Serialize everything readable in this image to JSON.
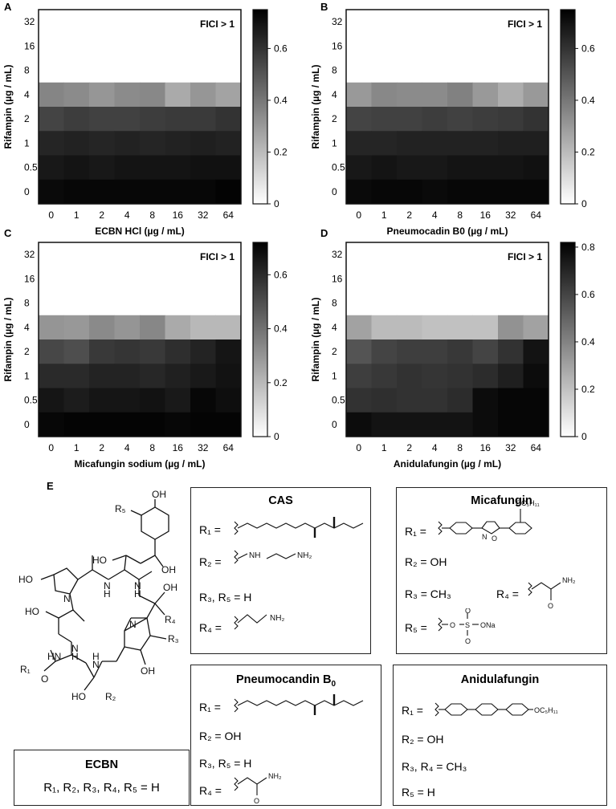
{
  "chart_data": [
    {
      "type": "heatmap",
      "panel": "A",
      "annotation": "FICI > 1",
      "xlabel": "ECBN HCl (µg / mL)",
      "ylabel": "Rifampin (µg / mL)",
      "x_categories": [
        "0",
        "1",
        "2",
        "4",
        "8",
        "16",
        "32",
        "64"
      ],
      "y_categories": [
        "32",
        "16",
        "8",
        "4",
        "2",
        "1",
        "0.5",
        "0"
      ],
      "colorbar": {
        "min": 0,
        "max": 0.75,
        "ticks": [
          0,
          0.2,
          0.4,
          0.6
        ]
      },
      "values": [
        [
          0,
          0,
          0,
          0,
          0,
          0,
          0,
          0
        ],
        [
          0,
          0,
          0,
          0,
          0,
          0,
          0,
          0
        ],
        [
          0,
          0,
          0,
          0,
          0,
          0,
          0,
          0
        ],
        [
          0.36,
          0.34,
          0.31,
          0.34,
          0.35,
          0.25,
          0.31,
          0.27
        ],
        [
          0.55,
          0.57,
          0.56,
          0.56,
          0.57,
          0.58,
          0.58,
          0.6
        ],
        [
          0.64,
          0.65,
          0.64,
          0.65,
          0.64,
          0.65,
          0.66,
          0.65
        ],
        [
          0.68,
          0.69,
          0.68,
          0.69,
          0.69,
          0.69,
          0.7,
          0.7
        ],
        [
          0.72,
          0.73,
          0.73,
          0.73,
          0.73,
          0.73,
          0.73,
          0.74
        ]
      ]
    },
    {
      "type": "heatmap",
      "panel": "B",
      "annotation": "FICI > 1",
      "xlabel": "Pneumocadin B0 (µg / mL)",
      "ylabel": "Rifampin (µg / mL)",
      "x_categories": [
        "0",
        "1",
        "2",
        "4",
        "8",
        "16",
        "32",
        "64"
      ],
      "y_categories": [
        "32",
        "16",
        "8",
        "4",
        "2",
        "1",
        "0.5",
        "0"
      ],
      "colorbar": {
        "min": 0,
        "max": 0.75,
        "ticks": [
          0,
          0.2,
          0.4,
          0.6
        ]
      },
      "values": [
        [
          0,
          0,
          0,
          0,
          0,
          0,
          0,
          0
        ],
        [
          0,
          0,
          0,
          0,
          0,
          0,
          0,
          0
        ],
        [
          0,
          0,
          0,
          0,
          0,
          0,
          0,
          0
        ],
        [
          0.3,
          0.35,
          0.34,
          0.34,
          0.37,
          0.3,
          0.24,
          0.3
        ],
        [
          0.55,
          0.56,
          0.56,
          0.57,
          0.56,
          0.57,
          0.58,
          0.6
        ],
        [
          0.64,
          0.64,
          0.65,
          0.65,
          0.65,
          0.65,
          0.66,
          0.66
        ],
        [
          0.68,
          0.69,
          0.68,
          0.68,
          0.69,
          0.69,
          0.69,
          0.7
        ],
        [
          0.72,
          0.73,
          0.73,
          0.72,
          0.73,
          0.73,
          0.73,
          0.73
        ]
      ]
    },
    {
      "type": "heatmap",
      "panel": "C",
      "annotation": "FICI > 1",
      "xlabel": "Micafungin sodium (µg / mL)",
      "ylabel": "Rifampin (µg / mL)",
      "x_categories": [
        "0",
        "1",
        "2",
        "4",
        "8",
        "16",
        "32",
        "64"
      ],
      "y_categories": [
        "32",
        "16",
        "8",
        "4",
        "2",
        "1",
        "0.5",
        "0"
      ],
      "colorbar": {
        "min": 0,
        "max": 0.72,
        "ticks": [
          0,
          0.2,
          0.4,
          0.6
        ]
      },
      "values": [
        [
          0,
          0,
          0,
          0,
          0,
          0,
          0,
          0
        ],
        [
          0,
          0,
          0,
          0,
          0,
          0,
          0,
          0
        ],
        [
          0,
          0,
          0,
          0,
          0,
          0,
          0,
          0
        ],
        [
          0.3,
          0.29,
          0.33,
          0.3,
          0.34,
          0.24,
          0.2,
          0.2
        ],
        [
          0.52,
          0.5,
          0.56,
          0.57,
          0.56,
          0.59,
          0.62,
          0.66
        ],
        [
          0.6,
          0.6,
          0.62,
          0.62,
          0.61,
          0.63,
          0.65,
          0.67
        ],
        [
          0.66,
          0.64,
          0.66,
          0.66,
          0.67,
          0.65,
          0.7,
          0.68
        ],
        [
          0.7,
          0.71,
          0.71,
          0.71,
          0.71,
          0.7,
          0.71,
          0.71
        ]
      ]
    },
    {
      "type": "heatmap",
      "panel": "D",
      "annotation": "FICI > 1",
      "xlabel": "Anidulafungin (µg / mL)",
      "ylabel": "Rifampin (µg / mL)",
      "x_categories": [
        "0",
        "1",
        "2",
        "4",
        "8",
        "16",
        "32",
        "64"
      ],
      "y_categories": [
        "32",
        "16",
        "8",
        "4",
        "2",
        "1",
        "0.5",
        "0"
      ],
      "colorbar": {
        "min": 0,
        "max": 0.82,
        "ticks": [
          0,
          0.2,
          0.4,
          0.6,
          0.8
        ]
      },
      "values": [
        [
          0,
          0,
          0,
          0,
          0,
          0,
          0,
          0
        ],
        [
          0,
          0,
          0,
          0,
          0,
          0,
          0,
          0
        ],
        [
          0,
          0,
          0,
          0,
          0,
          0,
          0,
          0
        ],
        [
          0.3,
          0.22,
          0.22,
          0.2,
          0.2,
          0.2,
          0.35,
          0.3
        ],
        [
          0.55,
          0.6,
          0.62,
          0.62,
          0.64,
          0.6,
          0.66,
          0.76
        ],
        [
          0.62,
          0.64,
          0.66,
          0.65,
          0.66,
          0.68,
          0.72,
          0.78
        ],
        [
          0.66,
          0.67,
          0.66,
          0.66,
          0.68,
          0.78,
          0.8,
          0.8
        ],
        [
          0.78,
          0.76,
          0.76,
          0.76,
          0.76,
          0.78,
          0.8,
          0.8
        ]
      ]
    }
  ],
  "panel_labels": {
    "a": "A",
    "b": "B",
    "c": "C",
    "d": "D",
    "e": "E"
  },
  "structure": {
    "atoms": {
      "oh_top": "OH",
      "r5": "R₅",
      "ho_left": "HO",
      "oh_right": "OH",
      "n_amide1": "N",
      "h_amide1": "H",
      "ho_pro": "HO",
      "n_pro": "N",
      "n_amide2": "N",
      "h_amide2": "H",
      "oh_r4": "OH",
      "r4": "R₄",
      "ho_thr": "HO",
      "n_amide3": "N",
      "h_amide3": "H",
      "r1": "R₁",
      "hn_side": "HN",
      "n_ring2": "N",
      "r3": "R₃",
      "oh_ring2": "OH",
      "n_amide4": "N",
      "h_amide4": "H",
      "ho_bottom": "HO",
      "r2": "R₂",
      "o": "O"
    }
  },
  "cas": {
    "title": "CAS",
    "r1": "R₁ =",
    "r2": "R₂ =",
    "r3r5": "R₃, R₅ = H",
    "r4": "R₄ =",
    "nh": "NH",
    "nh2": "NH₂",
    "nh2_b": "NH₂"
  },
  "micafungin": {
    "title": "Micafungin",
    "r1": "R₁ =",
    "oc5": "OC₅H₁₁",
    "n": "N",
    "o_ring": "O",
    "r2": "R₂ = OH",
    "r3": "R₃ = CH₃",
    "r4": "R₄ =",
    "nh2": "NH₂",
    "o_amide": "O",
    "r5": "R₅ =",
    "o1": "O",
    "s": "S",
    "ona": "ONa",
    "o_up": "O",
    "o_down": "O"
  },
  "pneumocandin": {
    "title": "Pneumocandin B",
    "title_sub": "0",
    "r1": "R₁ =",
    "r2": "R₂ = OH",
    "r3r5": "R₃, R₅ = H",
    "r4": "R₄ =",
    "nh2": "NH₂",
    "o": "O"
  },
  "anidulafungin": {
    "title": "Anidulafungin",
    "r1": "R₁ =",
    "oc5": "OC₅H₁₁",
    "r2": "R₂ = OH",
    "r3r4": "R₃, R₄ = CH₃",
    "r5": "R₅ = H"
  },
  "ecbn": {
    "title": "ECBN",
    "formula": "R₁, R₂, R₃, R₄, R₅ = H"
  }
}
